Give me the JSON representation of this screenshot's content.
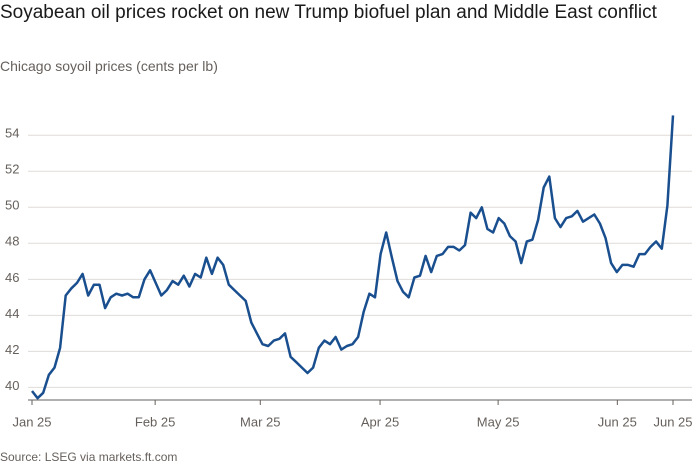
{
  "chart_data": {
    "type": "line",
    "title": "Soyabean oil prices rocket on new Trump biofuel plan and Middle East conflict",
    "subtitle": "Chicago soyoil prices (cents per lb)",
    "source": "Source: LSEG via markets.ft.com",
    "series": [
      {
        "name": "Chicago soyoil prices",
        "color": "#1a4f8f",
        "values": [
          39.8,
          39.4,
          39.7,
          40.7,
          41.1,
          42.2,
          45.1,
          45.5,
          45.8,
          46.3,
          45.1,
          45.7,
          45.7,
          44.4,
          45.0,
          45.2,
          45.1,
          45.2,
          45.0,
          45.0,
          46.0,
          46.5,
          45.8,
          45.1,
          45.4,
          45.9,
          45.7,
          46.2,
          45.6,
          46.3,
          46.1,
          47.2,
          46.3,
          47.2,
          46.8,
          45.7,
          45.4,
          45.1,
          44.8,
          43.6,
          43.0,
          42.4,
          42.3,
          42.6,
          42.7,
          43.0,
          41.7,
          41.4,
          41.1,
          40.8,
          41.1,
          42.2,
          42.6,
          42.4,
          42.8,
          42.1,
          42.3,
          42.4,
          42.8,
          44.2,
          45.2,
          45.0,
          47.4,
          48.6,
          47.2,
          45.9,
          45.3,
          45.0,
          46.1,
          46.2,
          47.3,
          46.4,
          47.3,
          47.4,
          47.8,
          47.8,
          47.6,
          47.9,
          49.7,
          49.4,
          50.0,
          48.8,
          48.6,
          49.4,
          49.1,
          48.4,
          48.1,
          46.9,
          48.1,
          48.2,
          49.3,
          51.1,
          51.7,
          49.4,
          48.9,
          49.4,
          49.5,
          49.8,
          49.2,
          49.4,
          49.6,
          49.1,
          48.3,
          46.9,
          46.4,
          46.8,
          46.8,
          46.7,
          47.4,
          47.4,
          47.8,
          48.1,
          47.7,
          50.1,
          55.1
        ]
      }
    ],
    "xlim": [
      0,
      114
    ],
    "xticks": [
      {
        "value": 0,
        "label": "Jan 25"
      },
      {
        "value": 21.9,
        "label": "Feb 25"
      },
      {
        "value": 40.6,
        "label": "Mar 25"
      },
      {
        "value": 61.9,
        "label": "Apr 25"
      },
      {
        "value": 82.9,
        "label": "May 25"
      },
      {
        "value": 104.1,
        "label": "Jun 25"
      },
      {
        "value": 114,
        "label": "Jun 25"
      }
    ],
    "ylim": [
      39.3,
      55.4
    ],
    "yticks": [
      40,
      42,
      44,
      46,
      48,
      50,
      52,
      54
    ],
    "grid": true
  }
}
